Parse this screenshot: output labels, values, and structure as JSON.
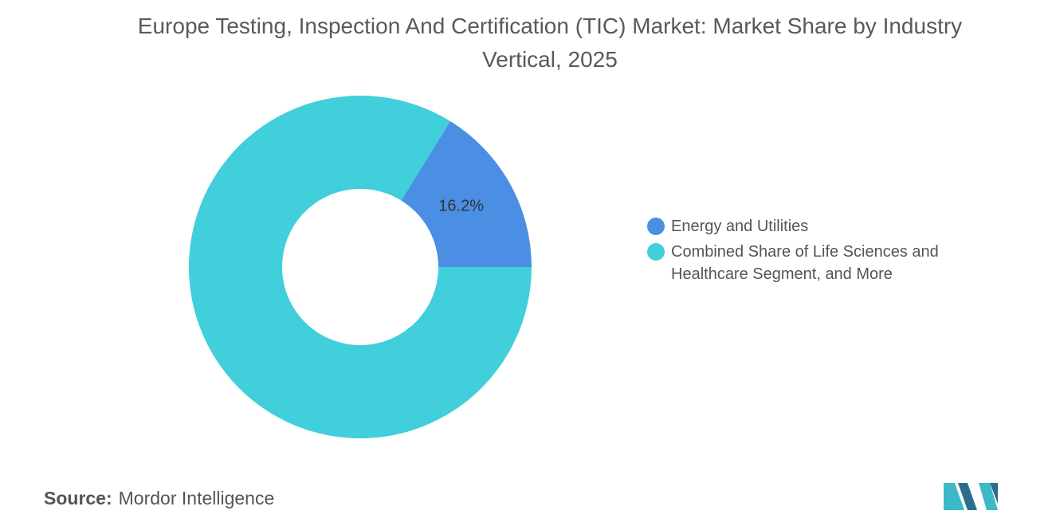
{
  "chart_data": {
    "type": "donut",
    "title": "Europe Testing, Inspection And Certification (TIC) Market: Market Share by Industry Vertical, 2025",
    "categories": [
      "Energy and Utilities",
      "Combined Share of Life Sciences and Healthcare Segment, and More"
    ],
    "values": [
      16.2,
      83.8
    ],
    "value_labels": [
      "16.2%",
      null
    ],
    "colors": [
      "#4a8fe3",
      "#40cfdb"
    ],
    "legend": "right",
    "source": {
      "label": "Source:",
      "text": "Mordor Intelligence"
    }
  }
}
